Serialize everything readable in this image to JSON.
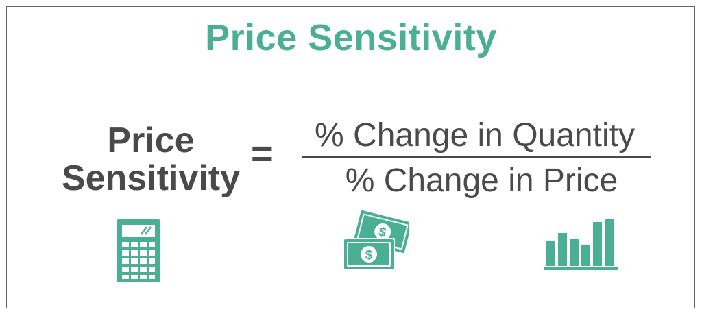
{
  "title": "Price Sensitivity",
  "formula": {
    "lhs_line1": "Price",
    "lhs_line2": "Sensitivity",
    "equals": "=",
    "numerator": "% Change in Quantity",
    "denominator": "% Change in Price"
  },
  "icons": [
    "calculator-icon",
    "money-icon",
    "bar-chart-icon"
  ],
  "colors": {
    "accent": "#4aaf95",
    "text": "#4a4a4a",
    "border": "#666666"
  }
}
